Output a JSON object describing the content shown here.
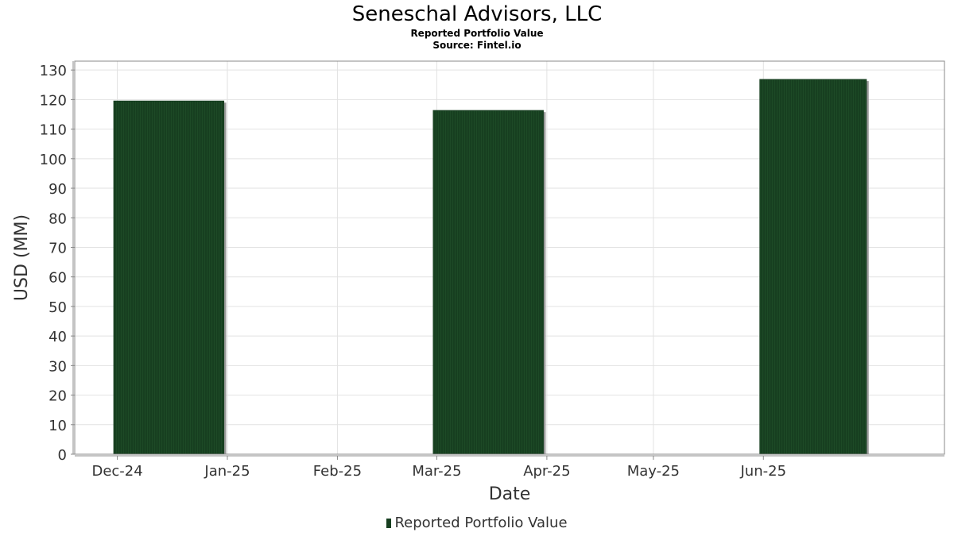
{
  "chart_data": {
    "type": "bar",
    "title": "Seneschal Advisors, LLC",
    "subtitle": "Reported Portfolio Value",
    "source": "Source: Fintel.io",
    "xlabel": "Date",
    "ylabel": "USD (MM)",
    "x_ticks": [
      "Dec-24",
      "Jan-25",
      "Feb-25",
      "Mar-25",
      "Apr-25",
      "May-25",
      "Jun-25"
    ],
    "y_ticks": [
      0,
      10,
      20,
      30,
      40,
      50,
      60,
      70,
      80,
      90,
      100,
      110,
      120,
      130
    ],
    "ylim": [
      0,
      133
    ],
    "xlim": [
      "2024-11-19",
      "2025-07-22"
    ],
    "grid": true,
    "legend_position": "bottom-center",
    "series": [
      {
        "name": "Reported Portfolio Value",
        "color": "#173f20",
        "points": [
          {
            "start": "2024-11-30",
            "end": "2024-12-31",
            "value": 119.5
          },
          {
            "start": "2025-02-28",
            "end": "2025-03-31",
            "value": 116.3
          },
          {
            "start": "2025-05-31",
            "end": "2025-06-30",
            "value": 126.8
          }
        ]
      }
    ]
  }
}
